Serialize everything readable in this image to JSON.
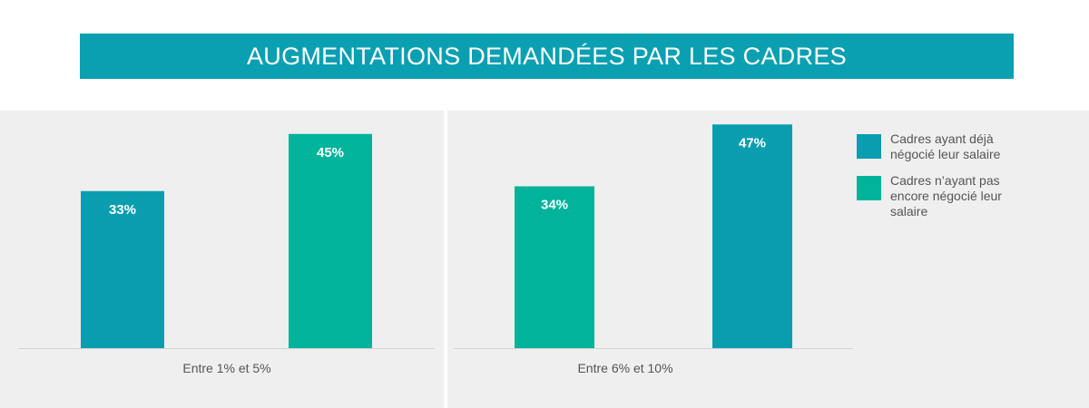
{
  "title": "AUGMENTATIONS DEMANDÉES PAR LES CADRES",
  "colors": {
    "banner": "#0aa0b2",
    "series_a": "#0a9db0",
    "series_b": "#00b39a",
    "panel": "#efefef"
  },
  "chart_data": [
    {
      "type": "bar",
      "xlabel": "Entre 1% et 5%",
      "categories": [
        "Cadres ayant déjà négocié leur salaire",
        "Cadres n’ayant pas encore négocié leur salaire"
      ],
      "values": [
        33,
        45
      ],
      "labels": [
        "33%",
        "45%"
      ],
      "colors": [
        "#0a9db0",
        "#00b39a"
      ],
      "ylim": [
        0,
        50
      ]
    },
    {
      "type": "bar",
      "xlabel": "Entre 6% et 10%",
      "categories": [
        "Cadres n’ayant pas encore négocié leur salaire",
        "Cadres ayant déjà négocié leur salaire"
      ],
      "values": [
        34,
        47
      ],
      "labels": [
        "34%",
        "47%"
      ],
      "colors": [
        "#00b39a",
        "#0a9db0"
      ],
      "ylim": [
        0,
        50
      ]
    }
  ],
  "legend": [
    {
      "label": "Cadres ayant déjà négocié leur salaire",
      "color": "#0a9db0"
    },
    {
      "label": "Cadres n’ayant pas encore négocié leur salaire",
      "color": "#00b39a"
    }
  ]
}
